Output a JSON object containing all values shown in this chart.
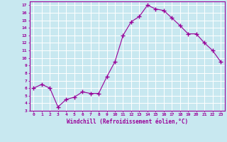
{
  "x": [
    0,
    1,
    2,
    3,
    4,
    5,
    6,
    7,
    8,
    9,
    10,
    11,
    12,
    13,
    14,
    15,
    16,
    17,
    18,
    19,
    20,
    21,
    22,
    23
  ],
  "y": [
    6.0,
    6.5,
    6.0,
    3.5,
    4.5,
    4.8,
    5.5,
    5.3,
    5.3,
    7.5,
    9.5,
    13.0,
    14.8,
    15.5,
    17.0,
    16.5,
    16.3,
    15.3,
    14.3,
    13.2,
    13.2,
    12.0,
    11.0,
    9.5
  ],
  "line_color": "#990099",
  "marker": "+",
  "marker_size": 4,
  "bg_color": "#c8e8f0",
  "grid_color": "#ffffff",
  "xlabel": "Windchill (Refroidissement éolien,°C)",
  "ylabel_ticks": [
    3,
    4,
    5,
    6,
    7,
    8,
    9,
    10,
    11,
    12,
    13,
    14,
    15,
    16,
    17
  ],
  "xticks": [
    0,
    1,
    2,
    3,
    4,
    5,
    6,
    7,
    8,
    9,
    10,
    11,
    12,
    13,
    14,
    15,
    16,
    17,
    18,
    19,
    20,
    21,
    22,
    23
  ],
  "xlim": [
    -0.5,
    23.5
  ],
  "ylim": [
    3,
    17.5
  ],
  "title": ""
}
